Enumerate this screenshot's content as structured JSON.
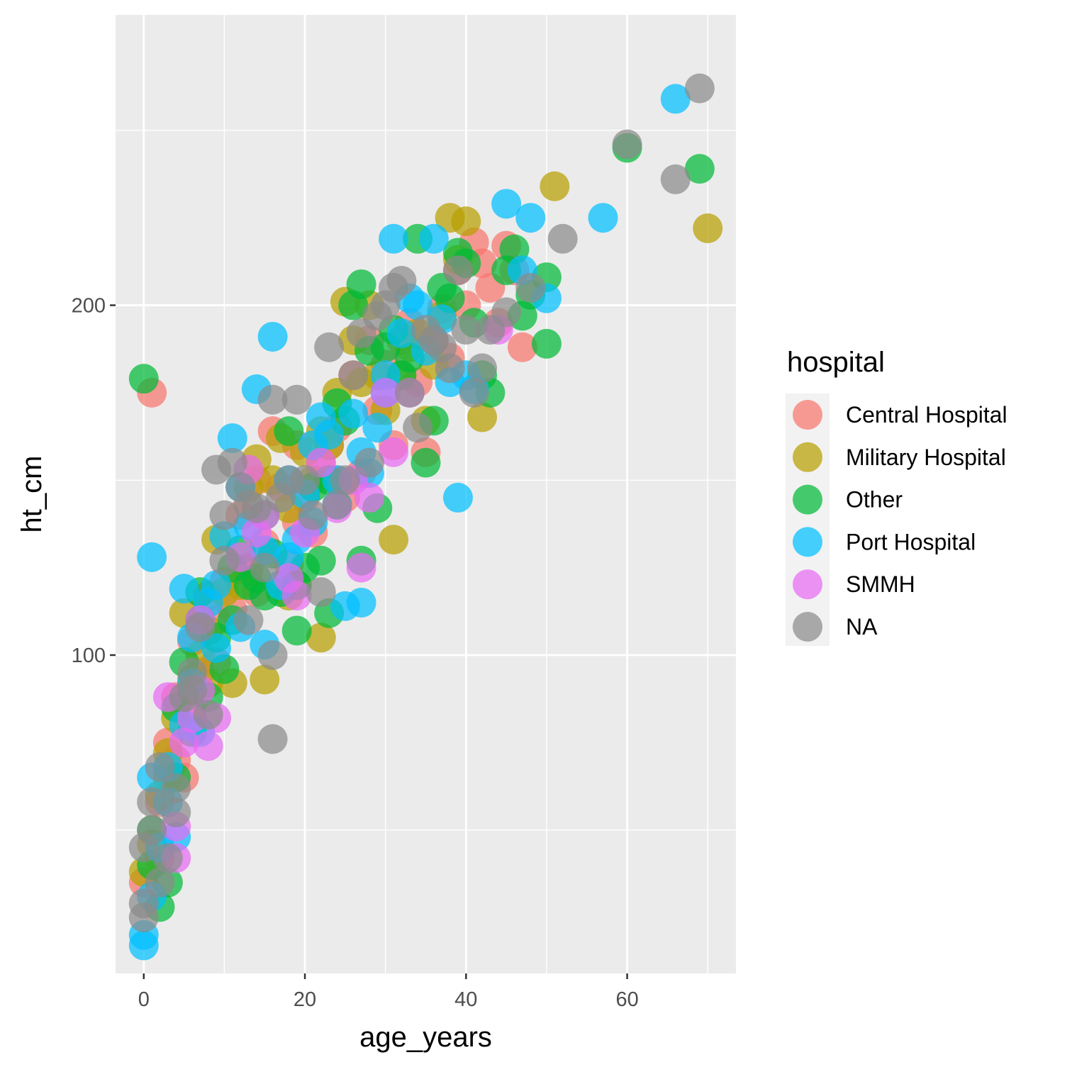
{
  "chart_data": {
    "type": "scatter",
    "xlabel": "age_years",
    "ylabel": "ht_cm",
    "xlim": [
      -3.5,
      73.5
    ],
    "ylim": [
      9,
      283
    ],
    "x_ticks": [
      0,
      20,
      40,
      60
    ],
    "y_ticks": [
      100,
      200
    ],
    "x_tick_labels": [
      "0",
      "20",
      "40",
      "60"
    ],
    "y_tick_labels": [
      "100",
      "200"
    ],
    "grid": true,
    "legend": {
      "title": "hospital",
      "position": "right",
      "entries": [
        "Central Hospital",
        "Military Hospital",
        "Other",
        "Port Hospital",
        "SMMH",
        "NA"
      ]
    },
    "colors": {
      "Central Hospital": "#F8766D",
      "Military Hospital": "#B79F00",
      "Other": "#00BA38",
      "Port Hospital": "#00BFFF",
      "SMMH": "#E76BF3",
      "NA": "#8A8A8A"
    },
    "series": [
      {
        "name": "Central Hospital",
        "points": [
          [
            0,
            35
          ],
          [
            1,
            175
          ],
          [
            2,
            58
          ],
          [
            3,
            75
          ],
          [
            4,
            88
          ],
          [
            5,
            65
          ],
          [
            6,
            104
          ],
          [
            7,
            95
          ],
          [
            8,
            117
          ],
          [
            9,
            110
          ],
          [
            10,
            121
          ],
          [
            11,
            113
          ],
          [
            12,
            140
          ],
          [
            13,
            125
          ],
          [
            14,
            150
          ],
          [
            15,
            132
          ],
          [
            16,
            164
          ],
          [
            17,
            148
          ],
          [
            18,
            126
          ],
          [
            19,
            160
          ],
          [
            20,
            145
          ],
          [
            21,
            135
          ],
          [
            22,
            155
          ],
          [
            23,
            160
          ],
          [
            24,
            150
          ],
          [
            25,
            145
          ],
          [
            26,
            180
          ],
          [
            27,
            152
          ],
          [
            28,
            190
          ],
          [
            29,
            170
          ],
          [
            30,
            183
          ],
          [
            31,
            160
          ],
          [
            32,
            190
          ],
          [
            33,
            195
          ],
          [
            34,
            178
          ],
          [
            35,
            158
          ],
          [
            36,
            190
          ],
          [
            37,
            199
          ],
          [
            38,
            185
          ],
          [
            39,
            210
          ],
          [
            40,
            200
          ],
          [
            41,
            218
          ],
          [
            42,
            212
          ],
          [
            43,
            205
          ],
          [
            44,
            195
          ],
          [
            45,
            217
          ],
          [
            46,
            210
          ],
          [
            47,
            188
          ],
          [
            2,
            42
          ],
          [
            4,
            70
          ],
          [
            6,
            85
          ],
          [
            9,
            98
          ],
          [
            14,
            118
          ],
          [
            19,
            138
          ],
          [
            24,
            165
          ]
        ]
      },
      {
        "name": "Military Hospital",
        "points": [
          [
            0,
            38
          ],
          [
            1,
            46
          ],
          [
            2,
            60
          ],
          [
            3,
            65
          ],
          [
            4,
            82
          ],
          [
            5,
            112
          ],
          [
            6,
            93
          ],
          [
            7,
            100
          ],
          [
            8,
            107
          ],
          [
            9,
            133
          ],
          [
            10,
            118
          ],
          [
            11,
            92
          ],
          [
            12,
            120
          ],
          [
            13,
            148
          ],
          [
            14,
            156
          ],
          [
            15,
            93
          ],
          [
            16,
            150
          ],
          [
            17,
            162
          ],
          [
            18,
            117
          ],
          [
            19,
            120
          ],
          [
            20,
            158
          ],
          [
            21,
            150
          ],
          [
            22,
            105
          ],
          [
            23,
            160
          ],
          [
            24,
            175
          ],
          [
            25,
            201
          ],
          [
            26,
            190
          ],
          [
            27,
            178
          ],
          [
            28,
            200
          ],
          [
            29,
            180
          ],
          [
            30,
            170
          ],
          [
            31,
            133
          ],
          [
            32,
            180
          ],
          [
            33,
            188
          ],
          [
            34,
            192
          ],
          [
            35,
            167
          ],
          [
            36,
            183
          ],
          [
            37,
            197
          ],
          [
            38,
            225
          ],
          [
            39,
            213
          ],
          [
            40,
            224
          ],
          [
            42,
            168
          ],
          [
            51,
            234
          ],
          [
            70,
            222
          ],
          [
            3,
            72
          ],
          [
            8,
            92
          ],
          [
            13,
            124
          ],
          [
            18,
            142
          ],
          [
            22,
            164
          ]
        ]
      },
      {
        "name": "Other",
        "points": [
          [
            0,
            179
          ],
          [
            1,
            50
          ],
          [
            2,
            28
          ],
          [
            3,
            35
          ],
          [
            4,
            65
          ],
          [
            5,
            98
          ],
          [
            6,
            78
          ],
          [
            7,
            118
          ],
          [
            8,
            88
          ],
          [
            9,
            105
          ],
          [
            10,
            96
          ],
          [
            11,
            125
          ],
          [
            12,
            130
          ],
          [
            13,
            120
          ],
          [
            14,
            122
          ],
          [
            15,
            117
          ],
          [
            16,
            129
          ],
          [
            17,
            118
          ],
          [
            18,
            164
          ],
          [
            19,
            107
          ],
          [
            20,
            125
          ],
          [
            21,
            148
          ],
          [
            22,
            127
          ],
          [
            23,
            150
          ],
          [
            24,
            172
          ],
          [
            25,
            167
          ],
          [
            26,
            200
          ],
          [
            27,
            206
          ],
          [
            28,
            187
          ],
          [
            29,
            142
          ],
          [
            30,
            188
          ],
          [
            31,
            193
          ],
          [
            32,
            180
          ],
          [
            33,
            185
          ],
          [
            34,
            219
          ],
          [
            35,
            155
          ],
          [
            36,
            167
          ],
          [
            37,
            205
          ],
          [
            38,
            202
          ],
          [
            39,
            215
          ],
          [
            40,
            212
          ],
          [
            41,
            195
          ],
          [
            42,
            180
          ],
          [
            43,
            175
          ],
          [
            45,
            210
          ],
          [
            46,
            216
          ],
          [
            47,
            197
          ],
          [
            48,
            203
          ],
          [
            50,
            208
          ],
          [
            50,
            189
          ],
          [
            60,
            245
          ],
          [
            69,
            239
          ],
          [
            1,
            40
          ],
          [
            4,
            85
          ],
          [
            7,
            110
          ],
          [
            11,
            110
          ],
          [
            15,
            140
          ],
          [
            19,
            120
          ],
          [
            23,
            112
          ],
          [
            27,
            127
          ]
        ]
      },
      {
        "name": "Port Hospital",
        "points": [
          [
            0,
            17
          ],
          [
            0,
            20
          ],
          [
            1,
            31
          ],
          [
            1,
            65
          ],
          [
            1,
            128
          ],
          [
            2,
            45
          ],
          [
            3,
            58
          ],
          [
            4,
            48
          ],
          [
            5,
            119
          ],
          [
            5,
            80
          ],
          [
            6,
            105
          ],
          [
            7,
            78
          ],
          [
            8,
            115
          ],
          [
            9,
            102
          ],
          [
            10,
            134
          ],
          [
            11,
            162
          ],
          [
            12,
            148
          ],
          [
            13,
            137
          ],
          [
            14,
            176
          ],
          [
            15,
            130
          ],
          [
            16,
            191
          ],
          [
            17,
            120
          ],
          [
            18,
            150
          ],
          [
            19,
            133
          ],
          [
            20,
            146
          ],
          [
            21,
            160
          ],
          [
            22,
            168
          ],
          [
            23,
            163
          ],
          [
            24,
            143
          ],
          [
            25,
            114
          ],
          [
            26,
            169
          ],
          [
            27,
            115
          ],
          [
            28,
            152
          ],
          [
            29,
            165
          ],
          [
            30,
            180
          ],
          [
            31,
            219
          ],
          [
            32,
            192
          ],
          [
            33,
            202
          ],
          [
            34,
            200
          ],
          [
            35,
            187
          ],
          [
            36,
            219
          ],
          [
            37,
            196
          ],
          [
            38,
            178
          ],
          [
            39,
            145
          ],
          [
            40,
            180
          ],
          [
            41,
            176
          ],
          [
            45,
            229
          ],
          [
            47,
            210
          ],
          [
            48,
            225
          ],
          [
            50,
            202
          ],
          [
            57,
            225
          ],
          [
            66,
            259
          ],
          [
            3,
            68
          ],
          [
            6,
            92
          ],
          [
            9,
            120
          ],
          [
            12,
            108
          ],
          [
            15,
            103
          ],
          [
            18,
            128
          ],
          [
            21,
            138
          ],
          [
            24,
            150
          ],
          [
            27,
            158
          ],
          [
            30,
            175
          ]
        ]
      },
      {
        "name": "SMMH",
        "points": [
          [
            3,
            88
          ],
          [
            4,
            42
          ],
          [
            4,
            51
          ],
          [
            5,
            75
          ],
          [
            6,
            82
          ],
          [
            7,
            90
          ],
          [
            8,
            74
          ],
          [
            9,
            82
          ],
          [
            12,
            128
          ],
          [
            13,
            153
          ],
          [
            14,
            135
          ],
          [
            15,
            140
          ],
          [
            18,
            122
          ],
          [
            19,
            117
          ],
          [
            20,
            135
          ],
          [
            22,
            155
          ],
          [
            24,
            142
          ],
          [
            26,
            150
          ],
          [
            27,
            125
          ],
          [
            28,
            145
          ],
          [
            30,
            175
          ],
          [
            31,
            158
          ],
          [
            33,
            175
          ],
          [
            44,
            193
          ],
          [
            7,
            110
          ]
        ]
      },
      {
        "name": "NA",
        "points": [
          [
            0,
            25
          ],
          [
            0,
            29
          ],
          [
            1,
            50
          ],
          [
            2,
            68
          ],
          [
            3,
            42
          ],
          [
            4,
            55
          ],
          [
            5,
            88
          ],
          [
            6,
            90
          ],
          [
            7,
            108
          ],
          [
            8,
            83
          ],
          [
            9,
            153
          ],
          [
            10,
            140
          ],
          [
            11,
            155
          ],
          [
            12,
            148
          ],
          [
            13,
            143
          ],
          [
            14,
            142
          ],
          [
            15,
            125
          ],
          [
            16,
            100
          ],
          [
            16,
            76
          ],
          [
            17,
            145
          ],
          [
            18,
            150
          ],
          [
            19,
            173
          ],
          [
            20,
            150
          ],
          [
            21,
            140
          ],
          [
            22,
            118
          ],
          [
            23,
            188
          ],
          [
            24,
            143
          ],
          [
            25,
            150
          ],
          [
            26,
            180
          ],
          [
            27,
            192
          ],
          [
            28,
            155
          ],
          [
            29,
            197
          ],
          [
            30,
            200
          ],
          [
            31,
            205
          ],
          [
            32,
            207
          ],
          [
            33,
            175
          ],
          [
            34,
            165
          ],
          [
            35,
            193
          ],
          [
            36,
            190
          ],
          [
            37,
            188
          ],
          [
            38,
            182
          ],
          [
            39,
            210
          ],
          [
            40,
            193
          ],
          [
            41,
            175
          ],
          [
            42,
            182
          ],
          [
            43,
            193
          ],
          [
            45,
            198
          ],
          [
            48,
            205
          ],
          [
            52,
            219
          ],
          [
            60,
            246
          ],
          [
            66,
            236
          ],
          [
            69,
            262
          ],
          [
            0,
            45
          ],
          [
            1,
            58
          ],
          [
            2,
            35
          ],
          [
            4,
            62
          ],
          [
            6,
            95
          ],
          [
            10,
            127
          ],
          [
            13,
            110
          ],
          [
            16,
            173
          ]
        ]
      }
    ]
  }
}
